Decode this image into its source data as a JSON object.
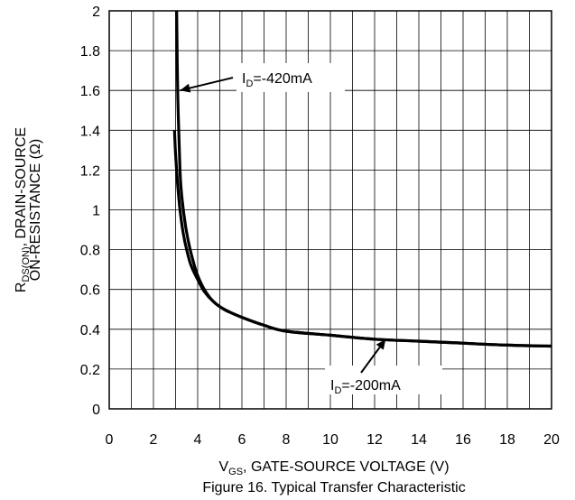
{
  "chart_data": {
    "type": "line",
    "xlabel": {
      "prefix": "V",
      "sub": "GS",
      "suffix": ", GATE-SOURCE VOLTAGE (V)"
    },
    "ylabel": {
      "line1_prefix": "R",
      "line1_sub": "DS(ON)",
      "line1_suffix": ", DRAIN-SOURCE",
      "line2": "ON-RESISTANCE (Ω)"
    },
    "caption": "Figure 16. Typical Transfer Characteristic",
    "xlim": [
      0,
      20
    ],
    "ylim": [
      0,
      2
    ],
    "x_ticks": [
      "0",
      "2",
      "4",
      "6",
      "8",
      "10",
      "12",
      "14",
      "16",
      "18",
      "20"
    ],
    "y_ticks": [
      "0",
      "0.2",
      "0.4",
      "0.6",
      "0.8",
      "1",
      "1.2",
      "1.4",
      "1.6",
      "1.8",
      "2"
    ],
    "grid": true,
    "series": [
      {
        "name": "ID=-420mA",
        "x": [
          3.05,
          3.1,
          3.2,
          3.3,
          3.45,
          3.6,
          3.8,
          4.0,
          4.3,
          4.7,
          5.2,
          6.0,
          7.0,
          8.0,
          10.0,
          12.0,
          14.0,
          16.0,
          18.0,
          20.0
        ],
        "y": [
          2.0,
          1.58,
          1.2,
          1.05,
          0.92,
          0.83,
          0.74,
          0.67,
          0.6,
          0.54,
          0.5,
          0.46,
          0.42,
          0.39,
          0.37,
          0.35,
          0.34,
          0.33,
          0.32,
          0.315
        ]
      },
      {
        "name": "ID=-200mA",
        "x": [
          2.95,
          3.0,
          3.1,
          3.2,
          3.35,
          3.5,
          3.7,
          4.0,
          4.3,
          4.7,
          5.2,
          6.0,
          7.0,
          8.0,
          10.0,
          12.0,
          14.0,
          16.0,
          18.0,
          20.0
        ],
        "y": [
          1.4,
          1.28,
          1.12,
          1.0,
          0.88,
          0.8,
          0.72,
          0.65,
          0.59,
          0.54,
          0.5,
          0.46,
          0.42,
          0.39,
          0.37,
          0.35,
          0.34,
          0.33,
          0.32,
          0.315
        ]
      }
    ],
    "annotations": [
      {
        "series": 0,
        "prefix": "I",
        "sub": "D",
        "suffix": "=-420mA",
        "point": [
          3.2,
          1.6
        ]
      },
      {
        "series": 1,
        "prefix": "I",
        "sub": "D",
        "suffix": "=-200mA",
        "point": [
          12.5,
          0.35
        ]
      }
    ]
  }
}
